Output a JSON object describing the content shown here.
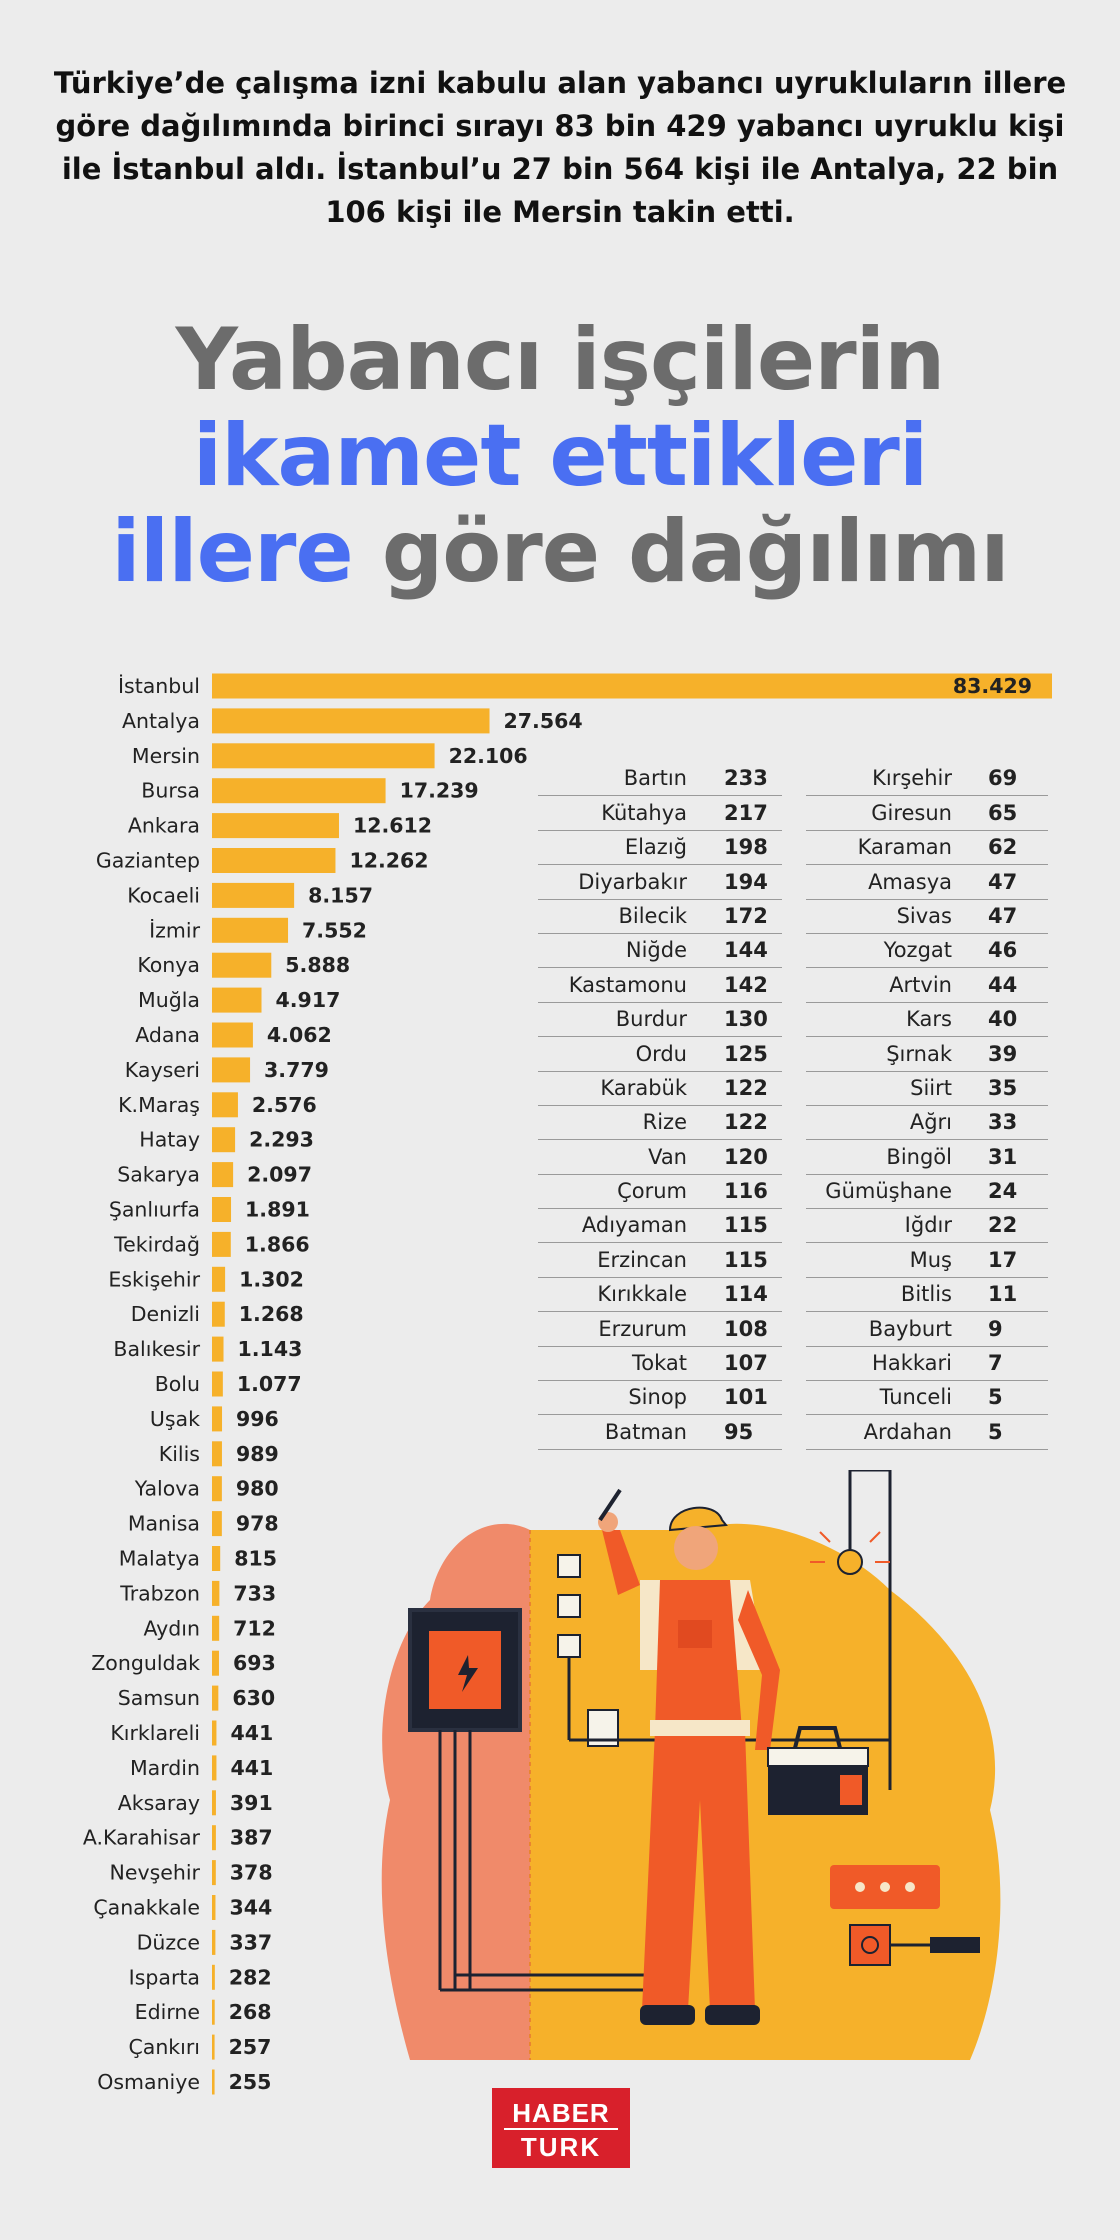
{
  "intro": "Türkiye’de çalışma izni kabulu alan yabancı uyrukluların illere göre dağılımında birinci sırayı 83 bin 429 yabancı uyruklu kişi ile İstanbul aldı. İstanbul’u 27 bin 564 kişi ile Antalya, 22 bin 106 kişi ile Mersin takin etti.",
  "headline": {
    "line1": "Yabancı işçilerin",
    "line2": "ikamet ettikleri",
    "line3_blue": "illere",
    "line3_gray": "göre dağılımı"
  },
  "colors": {
    "bar": "#f6b12a",
    "title_gray": "#6c6c6c",
    "title_blue": "#4a6ff2",
    "logo_red": "#d8202b",
    "background": "#ececec"
  },
  "chart_data": {
    "type": "bar",
    "orientation": "horizontal",
    "categories": [
      "İstanbul",
      "Antalya",
      "Mersin",
      "Bursa",
      "Ankara",
      "Gaziantep",
      "Kocaeli",
      "İzmir",
      "Konya",
      "Muğla",
      "Adana",
      "Kayseri",
      "K.Maraş",
      "Hatay",
      "Sakarya",
      "Şanlıurfa",
      "Tekirdağ",
      "Eskişehir",
      "Denizli",
      "Balıkesir",
      "Bolu",
      "Uşak",
      "Kilis",
      "Yalova",
      "Manisa",
      "Malatya",
      "Trabzon",
      "Aydın",
      "Zonguldak",
      "Samsun",
      "Kırklareli",
      "Mardin",
      "Aksaray",
      "A.Karahisar",
      "Nevşehir",
      "Çanakkale",
      "Düzce",
      "Isparta",
      "Edirne",
      "Çankırı",
      "Osmaniye"
    ],
    "values": [
      83429,
      27564,
      22106,
      17239,
      12612,
      12262,
      8157,
      7552,
      5888,
      4917,
      4062,
      3779,
      2576,
      2293,
      2097,
      1891,
      1866,
      1302,
      1268,
      1143,
      1077,
      996,
      989,
      980,
      978,
      815,
      733,
      712,
      693,
      630,
      441,
      441,
      391,
      387,
      378,
      344,
      337,
      282,
      268,
      257,
      255
    ],
    "labels": [
      "83.429",
      "27.564",
      "22.106",
      "17.239",
      "12.612",
      "12.262",
      "8.157",
      "7.552",
      "5.888",
      "4.917",
      "4.062",
      "3.779",
      "2.576",
      "2.293",
      "2.097",
      "1.891",
      "1.866",
      "1.302",
      "1.268",
      "1.143",
      "1.077",
      "996",
      "989",
      "980",
      "978",
      "815",
      "733",
      "712",
      "693",
      "630",
      "441",
      "441",
      "391",
      "387",
      "378",
      "344",
      "337",
      "282",
      "268",
      "257",
      "255"
    ],
    "xlim": [
      0,
      83429
    ]
  },
  "table1": [
    {
      "name": "Bartın",
      "value": "233"
    },
    {
      "name": "Kütahya",
      "value": "217"
    },
    {
      "name": "Elazığ",
      "value": "198"
    },
    {
      "name": "Diyarbakır",
      "value": "194"
    },
    {
      "name": "Bilecik",
      "value": "172"
    },
    {
      "name": "Niğde",
      "value": "144"
    },
    {
      "name": "Kastamonu",
      "value": "142"
    },
    {
      "name": "Burdur",
      "value": "130"
    },
    {
      "name": "Ordu",
      "value": "125"
    },
    {
      "name": "Karabük",
      "value": "122"
    },
    {
      "name": "Rize",
      "value": "122"
    },
    {
      "name": "Van",
      "value": "120"
    },
    {
      "name": "Çorum",
      "value": "116"
    },
    {
      "name": "Adıyaman",
      "value": "115"
    },
    {
      "name": "Erzincan",
      "value": "115"
    },
    {
      "name": "Kırıkkale",
      "value": "114"
    },
    {
      "name": "Erzurum",
      "value": "108"
    },
    {
      "name": "Tokat",
      "value": "107"
    },
    {
      "name": "Sinop",
      "value": "101"
    },
    {
      "name": "Batman",
      "value": "95"
    }
  ],
  "table2": [
    {
      "name": "Kırşehir",
      "value": "69"
    },
    {
      "name": "Giresun",
      "value": "65"
    },
    {
      "name": "Karaman",
      "value": "62"
    },
    {
      "name": "Amasya",
      "value": "47"
    },
    {
      "name": "Sivas",
      "value": "47"
    },
    {
      "name": "Yozgat",
      "value": "46"
    },
    {
      "name": "Artvin",
      "value": "44"
    },
    {
      "name": "Kars",
      "value": "40"
    },
    {
      "name": "Şırnak",
      "value": "39"
    },
    {
      "name": "Siirt",
      "value": "35"
    },
    {
      "name": "Ağrı",
      "value": "33"
    },
    {
      "name": "Bingöl",
      "value": "31"
    },
    {
      "name": "Gümüşhane",
      "value": "24"
    },
    {
      "name": "Iğdır",
      "value": "22"
    },
    {
      "name": "Muş",
      "value": "17"
    },
    {
      "name": "Bitlis",
      "value": "11"
    },
    {
      "name": "Bayburt",
      "value": "9"
    },
    {
      "name": "Hakkari",
      "value": "7"
    },
    {
      "name": "Tunceli",
      "value": "5"
    },
    {
      "name": "Ardahan",
      "value": "5"
    }
  ],
  "logo": {
    "line1": "HABER",
    "line2": "TURK"
  }
}
